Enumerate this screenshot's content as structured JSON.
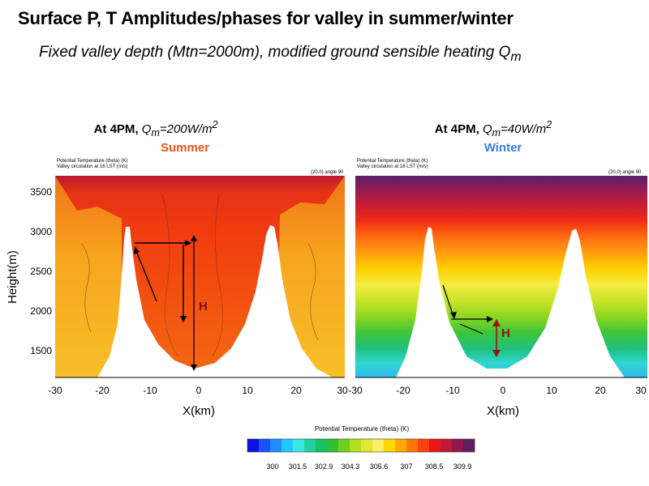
{
  "title": "Surface P, T Amplitudes/phases for valley in summer/winter",
  "subtitle": {
    "prefix": "Fixed valley depth (Mtn=2000m), modified ground sensible heating Q",
    "sub": "m"
  },
  "panels": [
    {
      "id": "summer",
      "time": "At 4PM,",
      "q_sym": "Q",
      "q_sub": "m",
      "q_val": "=200W/m",
      "q_sup": "2",
      "season": "Summer",
      "season_color": "#e8561b",
      "header_line1": "Potential Temperature (theta)    (K)",
      "header_line2": "Valley circulation at 16 LST    (m/s)",
      "header_right": "(20,0) angle 90",
      "h_label": "H"
    },
    {
      "id": "winter",
      "time": "At 4PM,",
      "q_sym": "Q",
      "q_sub": "m",
      "q_val": "=40W/m",
      "q_sup": "2",
      "season": "Winter",
      "season_color": "#3d7de0",
      "header_line1": "Potential Temperature (theta)    (K)",
      "header_line2": "Valley circulation at 16 LST    (m/s)",
      "header_right": "(20,0) angle 90",
      "h_label": "H"
    }
  ],
  "axes": {
    "ylabel": "Height(m)",
    "xlabel": "X(km)",
    "yticks": [
      "3500",
      "3000",
      "2500",
      "2000",
      "1500"
    ],
    "xticks_left": [
      "-30",
      "-20",
      "-10",
      "0",
      "10",
      "20",
      "30"
    ],
    "xticks_right": [
      "-30",
      "-20",
      "-10",
      "0",
      "10",
      "20",
      "30"
    ]
  },
  "colorbar": {
    "title": "Potential Temperature (theta)    (K)",
    "labels": [
      "300",
      "301.5",
      "302.9",
      "304.3",
      "305.6",
      "307",
      "308.5",
      "309.9"
    ],
    "colors": [
      "#1010e0",
      "#1a52ff",
      "#1f8cff",
      "#23c8ff",
      "#3ae8e0",
      "#20d0a0",
      "#19c060",
      "#30c030",
      "#70d020",
      "#b0e020",
      "#e0e830",
      "#f8f060",
      "#ffd800",
      "#ffa800",
      "#ff7800",
      "#ff4010",
      "#e81818",
      "#c01838",
      "#901850",
      "#602060"
    ]
  }
}
